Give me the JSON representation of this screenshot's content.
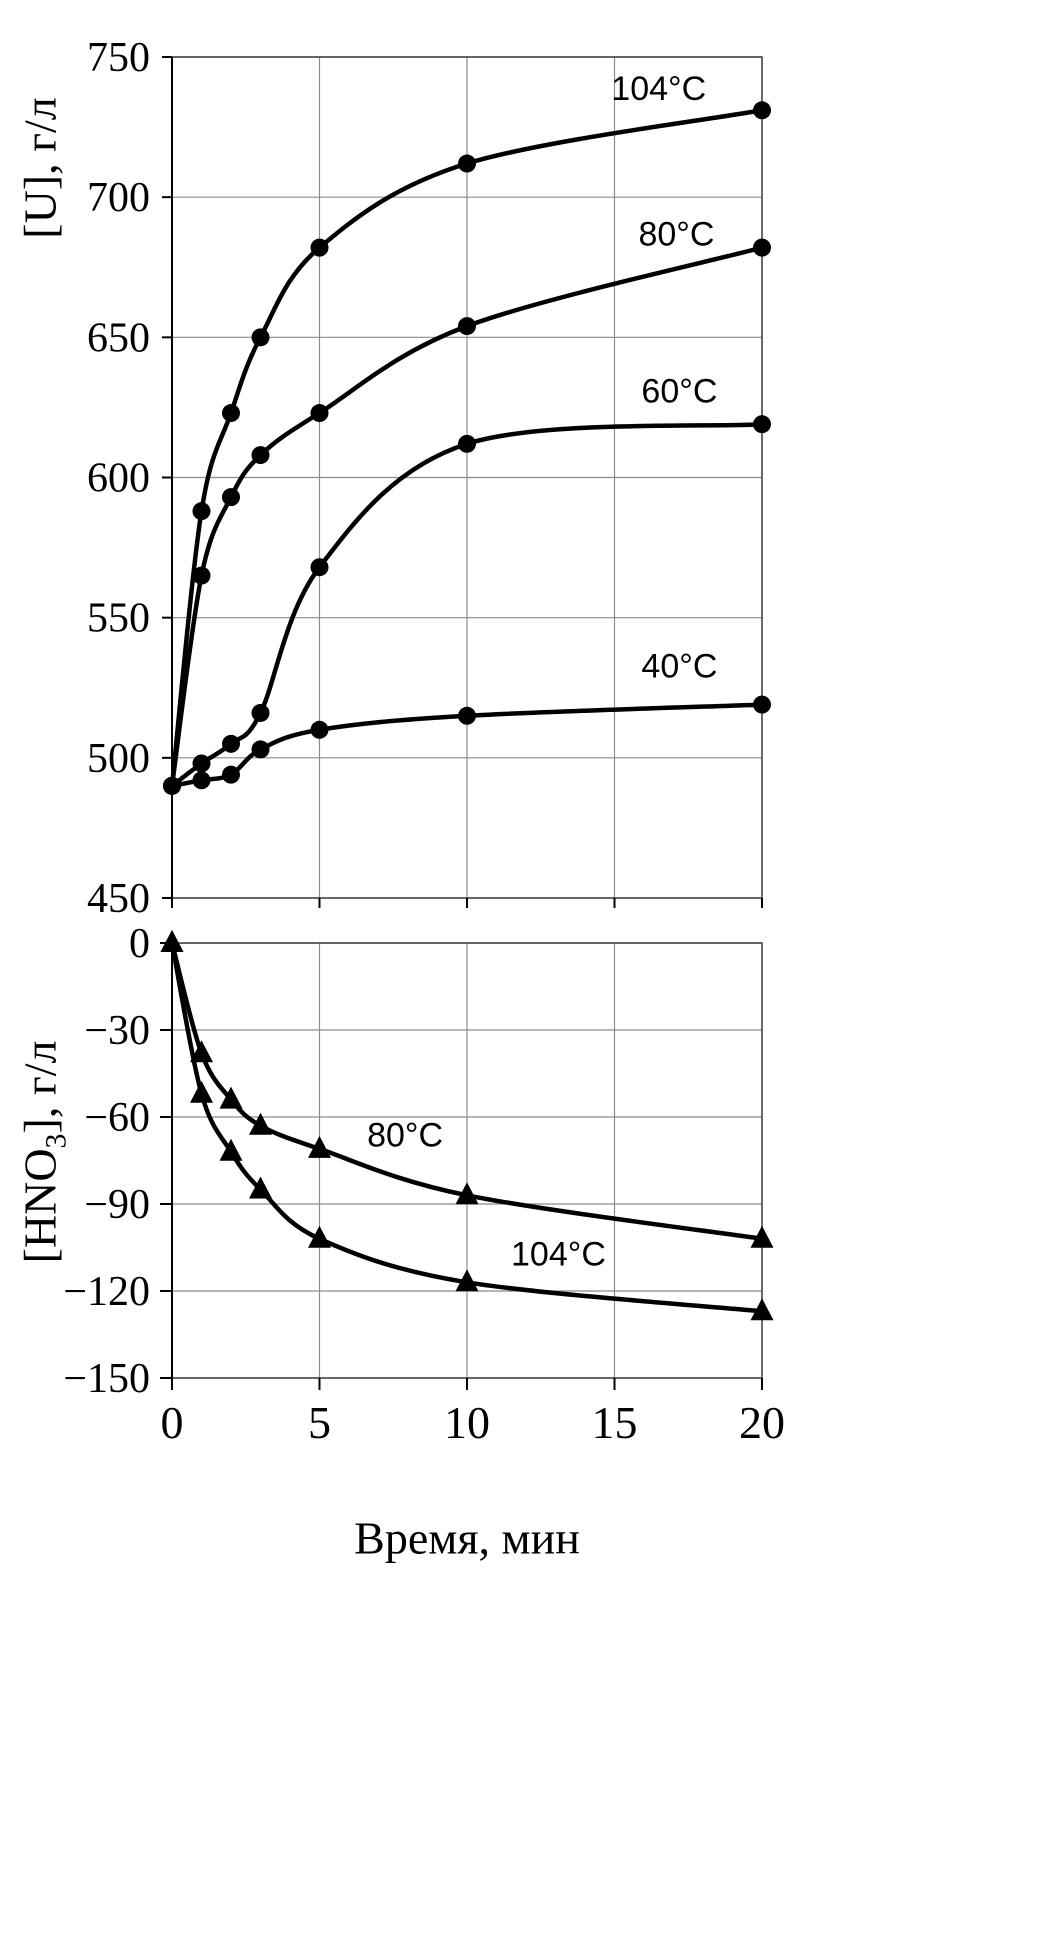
{
  "xlabel": "Время, мин",
  "chart_data": [
    {
      "type": "line",
      "title": "",
      "ylabel": {
        "pre": "[U], г/л",
        "sub": "",
        "post": ""
      },
      "x": [
        0,
        1,
        2,
        3,
        5,
        10,
        20
      ],
      "xlim": [
        0,
        20
      ],
      "ylim": [
        450,
        750
      ],
      "xticks": [
        0,
        5,
        10,
        15,
        20
      ],
      "yticks": [
        450,
        500,
        550,
        600,
        650,
        700,
        750
      ],
      "grid": true,
      "show_x_tick_labels": false,
      "marker": "circle",
      "line_color": "#000000",
      "grid_color": "#8c8c8c",
      "legend": "inline-annotations",
      "series": [
        {
          "name": "104°C",
          "values": [
            490,
            588,
            623,
            650,
            682,
            712,
            731
          ]
        },
        {
          "name": "80°C",
          "values": [
            490,
            565,
            593,
            608,
            623,
            654,
            682
          ]
        },
        {
          "name": "60°C",
          "values": [
            490,
            498,
            505,
            516,
            568,
            612,
            619
          ]
        },
        {
          "name": "40°C",
          "values": [
            490,
            492,
            494,
            503,
            510,
            515,
            519
          ]
        }
      ],
      "annotations": [
        {
          "text": "104°C",
          "x": 16.5,
          "y": 739
        },
        {
          "text": "80°C",
          "x": 17.1,
          "y": 687
        },
        {
          "text": "60°C",
          "x": 17.2,
          "y": 631
        },
        {
          "text": "40°C",
          "x": 17.2,
          "y": 533
        }
      ]
    },
    {
      "type": "line",
      "title": "",
      "ylabel": {
        "pre": "[HNO",
        "sub": "3",
        "post": "], г/л"
      },
      "x": [
        0,
        1,
        2,
        3,
        5,
        10,
        20
      ],
      "xlim": [
        0,
        20
      ],
      "ylim": [
        -150,
        0
      ],
      "xticks": [
        0,
        5,
        10,
        15,
        20
      ],
      "yticks": [
        0,
        -30,
        -60,
        -90,
        -120,
        -150
      ],
      "grid": true,
      "show_x_tick_labels": true,
      "marker": "triangle",
      "line_color": "#000000",
      "grid_color": "#8c8c8c",
      "legend": "inline-annotations",
      "series": [
        {
          "name": "80°C",
          "values": [
            0,
            -38,
            -54,
            -63,
            -71,
            -87,
            -102
          ]
        },
        {
          "name": "104°C",
          "values": [
            0,
            -52,
            -72,
            -85,
            -102,
            -117,
            -127
          ]
        }
      ],
      "annotations": [
        {
          "text": "80°C",
          "x": 7.9,
          "y": -66
        },
        {
          "text": "104°C",
          "x": 13.1,
          "y": -107
        }
      ]
    }
  ]
}
